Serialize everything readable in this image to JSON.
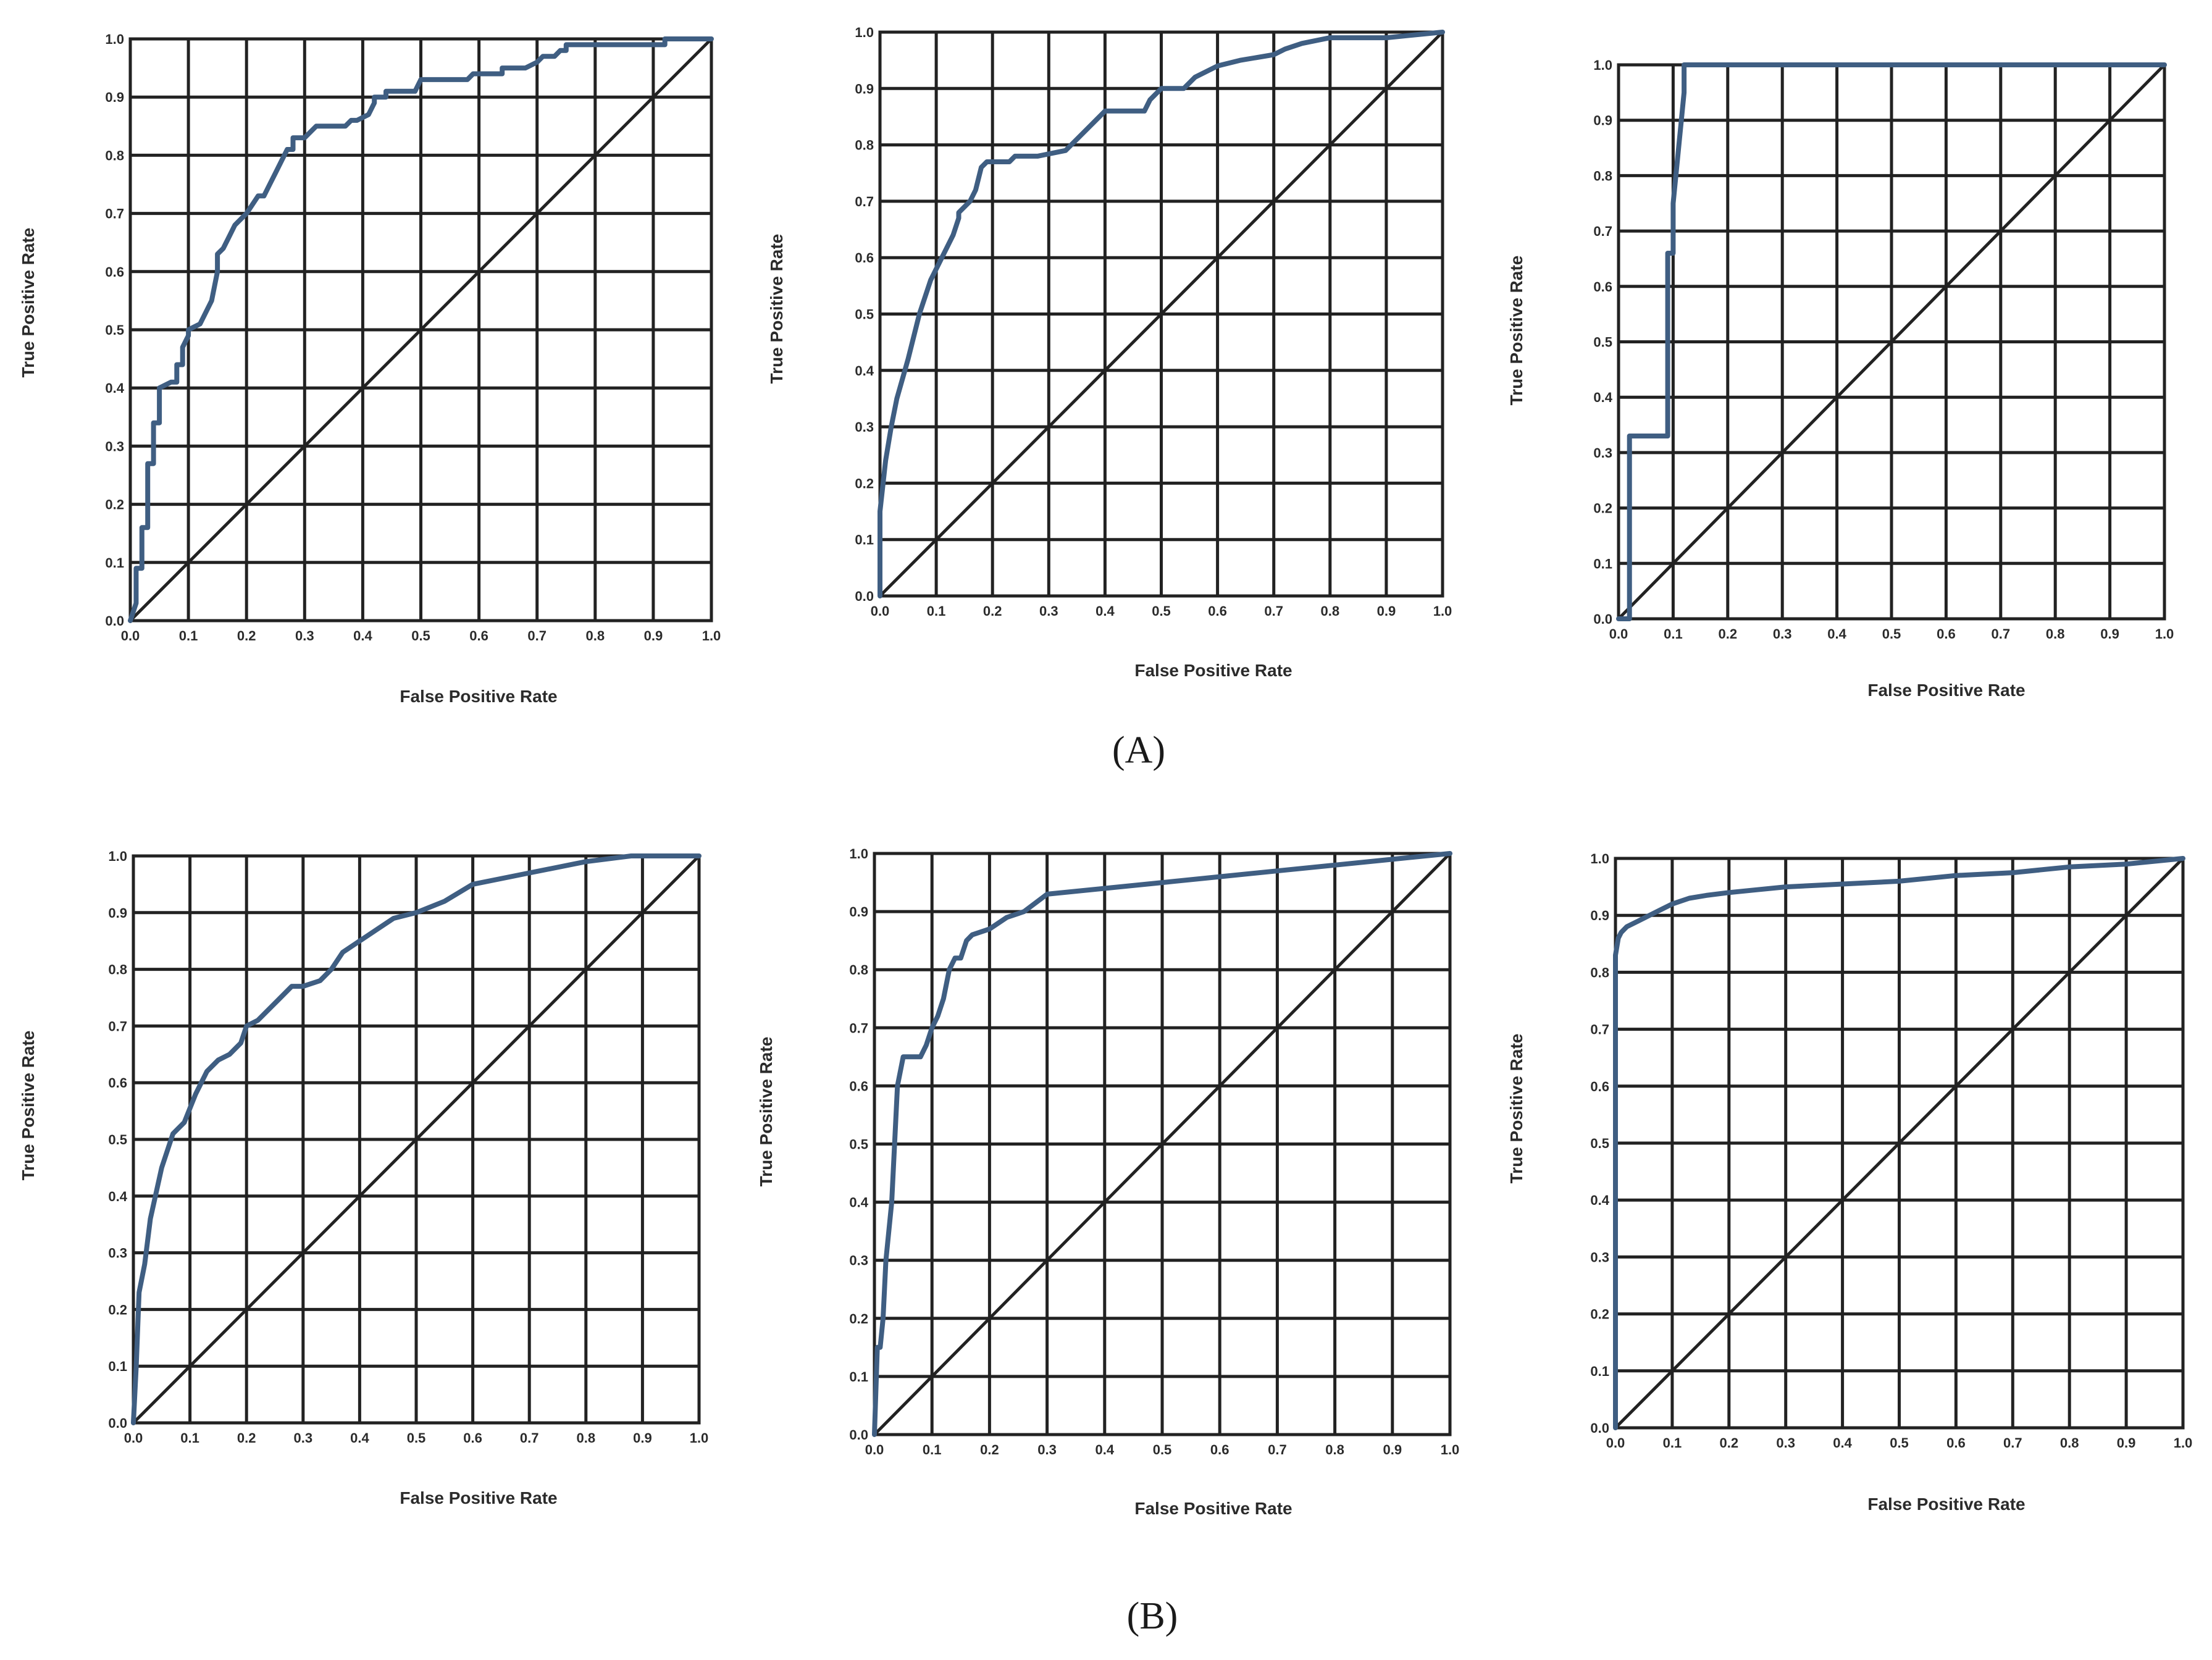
{
  "colors": {
    "roc_line": "#3f5e82",
    "grid": "#222222"
  },
  "figure": {
    "panel_labels": [
      "(A)",
      "(B)"
    ]
  },
  "chart_data": [
    {
      "type": "line",
      "xlabel": "False Positive Rate",
      "ylabel": "True Positive Rate",
      "xlim": [
        0,
        1
      ],
      "ylim": [
        0,
        1
      ],
      "ticks": [
        "0.0",
        "0.1",
        "0.2",
        "0.3",
        "0.4",
        "0.5",
        "0.6",
        "0.7",
        "0.8",
        "0.9",
        "1.0"
      ],
      "grid": true,
      "diagonal": true,
      "series": [
        {
          "x": [
            0,
            0.01,
            0.01,
            0.02,
            0.02,
            0.03,
            0.03,
            0.04,
            0.04,
            0.05,
            0.05,
            0.07,
            0.08,
            0.08,
            0.09,
            0.09,
            0.1,
            0.1,
            0.12,
            0.14,
            0.15,
            0.15,
            0.16,
            0.17,
            0.18,
            0.2,
            0.22,
            0.23,
            0.24,
            0.25,
            0.27,
            0.28,
            0.28,
            0.3,
            0.31,
            0.32,
            0.33,
            0.37,
            0.38,
            0.39,
            0.41,
            0.42,
            0.42,
            0.44,
            0.44,
            0.47,
            0.49,
            0.5,
            0.56,
            0.58,
            0.59,
            0.64,
            0.64,
            0.68,
            0.7,
            0.71,
            0.73,
            0.74,
            0.75,
            0.75,
            0.77,
            0.79,
            0.8,
            0.86,
            0.89,
            0.91,
            0.92,
            0.92,
            0.95,
            0.97,
            0.99,
            1
          ],
          "y": [
            0,
            0.03,
            0.09,
            0.09,
            0.16,
            0.16,
            0.27,
            0.27,
            0.34,
            0.34,
            0.4,
            0.41,
            0.41,
            0.44,
            0.44,
            0.47,
            0.49,
            0.5,
            0.51,
            0.55,
            0.6,
            0.63,
            0.64,
            0.66,
            0.68,
            0.7,
            0.73,
            0.73,
            0.75,
            0.77,
            0.81,
            0.81,
            0.83,
            0.83,
            0.84,
            0.85,
            0.85,
            0.85,
            0.86,
            0.86,
            0.87,
            0.89,
            0.9,
            0.9,
            0.91,
            0.91,
            0.91,
            0.93,
            0.93,
            0.93,
            0.94,
            0.94,
            0.95,
            0.95,
            0.96,
            0.97,
            0.97,
            0.98,
            0.98,
            0.99,
            0.99,
            0.99,
            0.99,
            0.99,
            0.99,
            0.99,
            0.99,
            1,
            1,
            1,
            1,
            1
          ]
        }
      ]
    },
    {
      "type": "line",
      "xlabel": "False Positive Rate",
      "ylabel": "True Positive Rate",
      "xlim": [
        0,
        1
      ],
      "ylim": [
        0,
        1
      ],
      "ticks": [
        "0.0",
        "0.1",
        "0.2",
        "0.3",
        "0.4",
        "0.5",
        "0.6",
        "0.7",
        "0.8",
        "0.9",
        "1.0"
      ],
      "grid": true,
      "diagonal": true,
      "series": [
        {
          "x": [
            0,
            0,
            0.01,
            0.02,
            0.03,
            0.05,
            0.07,
            0.09,
            0.11,
            0.13,
            0.14,
            0.14,
            0.15,
            0.16,
            0.17,
            0.18,
            0.19,
            0.2,
            0.23,
            0.24,
            0.28,
            0.33,
            0.36,
            0.39,
            0.4,
            0.47,
            0.48,
            0.5,
            0.54,
            0.56,
            0.6,
            0.64,
            0.7,
            0.72,
            0.75,
            0.8,
            0.9,
            1
          ],
          "y": [
            0,
            0.15,
            0.24,
            0.3,
            0.35,
            0.42,
            0.5,
            0.56,
            0.6,
            0.64,
            0.67,
            0.68,
            0.69,
            0.7,
            0.72,
            0.76,
            0.77,
            0.77,
            0.77,
            0.78,
            0.78,
            0.79,
            0.82,
            0.85,
            0.86,
            0.86,
            0.88,
            0.9,
            0.9,
            0.92,
            0.94,
            0.95,
            0.96,
            0.97,
            0.98,
            0.99,
            0.99,
            1
          ]
        }
      ]
    },
    {
      "type": "line",
      "xlabel": "False Positive Rate",
      "ylabel": "True Positive Rate",
      "xlim": [
        0,
        1
      ],
      "ylim": [
        0,
        1
      ],
      "ticks": [
        "0.0",
        "0.1",
        "0.2",
        "0.3",
        "0.4",
        "0.5",
        "0.6",
        "0.7",
        "0.8",
        "0.9",
        "1.0"
      ],
      "grid": true,
      "diagonal": true,
      "series": [
        {
          "x": [
            0,
            0.02,
            0.02,
            0.09,
            0.09,
            0.1,
            0.1,
            0.12,
            0.12,
            1
          ],
          "y": [
            0,
            0,
            0.33,
            0.33,
            0.66,
            0.66,
            0.75,
            0.95,
            1,
            1
          ]
        }
      ]
    },
    {
      "type": "line",
      "xlabel": "False Positive Rate",
      "ylabel": "True Positive Rate",
      "xlim": [
        0,
        1
      ],
      "ylim": [
        0,
        1
      ],
      "ticks": [
        "0.0",
        "0.1",
        "0.2",
        "0.3",
        "0.4",
        "0.5",
        "0.6",
        "0.7",
        "0.8",
        "0.9",
        "1.0"
      ],
      "grid": true,
      "diagonal": true,
      "series": [
        {
          "x": [
            0,
            0.005,
            0.01,
            0.02,
            0.03,
            0.05,
            0.07,
            0.08,
            0.09,
            0.11,
            0.13,
            0.15,
            0.17,
            0.19,
            0.2,
            0.22,
            0.26,
            0.28,
            0.3,
            0.33,
            0.35,
            0.37,
            0.4,
            0.43,
            0.46,
            0.5,
            0.55,
            0.6,
            0.7,
            0.8,
            0.88,
            0.9,
            1
          ],
          "y": [
            0,
            0.1,
            0.23,
            0.28,
            0.36,
            0.45,
            0.51,
            0.52,
            0.53,
            0.58,
            0.62,
            0.64,
            0.65,
            0.67,
            0.7,
            0.71,
            0.75,
            0.77,
            0.77,
            0.78,
            0.8,
            0.83,
            0.85,
            0.87,
            0.89,
            0.9,
            0.92,
            0.95,
            0.97,
            0.99,
            1,
            1,
            1
          ]
        }
      ]
    },
    {
      "type": "line",
      "xlabel": "False Positive Rate",
      "ylabel": "True Positive Rate",
      "xlim": [
        0,
        1
      ],
      "ylim": [
        0,
        1
      ],
      "ticks": [
        "0.0",
        "0.1",
        "0.2",
        "0.3",
        "0.4",
        "0.5",
        "0.6",
        "0.7",
        "0.8",
        "0.9",
        "1.0"
      ],
      "grid": true,
      "diagonal": true,
      "series": [
        {
          "x": [
            0,
            0.005,
            0.01,
            0.015,
            0.02,
            0.03,
            0.04,
            0.05,
            0.08,
            0.09,
            0.1,
            0.11,
            0.12,
            0.13,
            0.14,
            0.15,
            0.16,
            0.17,
            0.2,
            0.23,
            0.26,
            0.3,
            0.4,
            0.5,
            0.6,
            0.7,
            0.8,
            0.9,
            1
          ],
          "y": [
            0,
            0.15,
            0.15,
            0.2,
            0.3,
            0.4,
            0.6,
            0.65,
            0.65,
            0.67,
            0.7,
            0.72,
            0.75,
            0.8,
            0.82,
            0.82,
            0.85,
            0.86,
            0.87,
            0.89,
            0.9,
            0.93,
            0.94,
            0.95,
            0.96,
            0.97,
            0.98,
            0.99,
            1
          ]
        }
      ]
    },
    {
      "type": "line",
      "xlabel": "False Positive Rate",
      "ylabel": "True Positive Rate",
      "xlim": [
        0,
        1
      ],
      "ylim": [
        0,
        1
      ],
      "ticks": [
        "0.0",
        "0.1",
        "0.2",
        "0.3",
        "0.4",
        "0.5",
        "0.6",
        "0.7",
        "0.8",
        "0.9",
        "1.0"
      ],
      "grid": true,
      "diagonal": true,
      "series": [
        {
          "x": [
            0,
            0,
            0.005,
            0.01,
            0.02,
            0.04,
            0.06,
            0.08,
            0.1,
            0.13,
            0.16,
            0.2,
            0.25,
            0.3,
            0.4,
            0.5,
            0.6,
            0.7,
            0.8,
            0.9,
            1
          ],
          "y": [
            0,
            0.83,
            0.86,
            0.87,
            0.88,
            0.89,
            0.9,
            0.91,
            0.92,
            0.93,
            0.935,
            0.94,
            0.945,
            0.95,
            0.955,
            0.96,
            0.97,
            0.975,
            0.985,
            0.99,
            1
          ]
        }
      ]
    }
  ]
}
